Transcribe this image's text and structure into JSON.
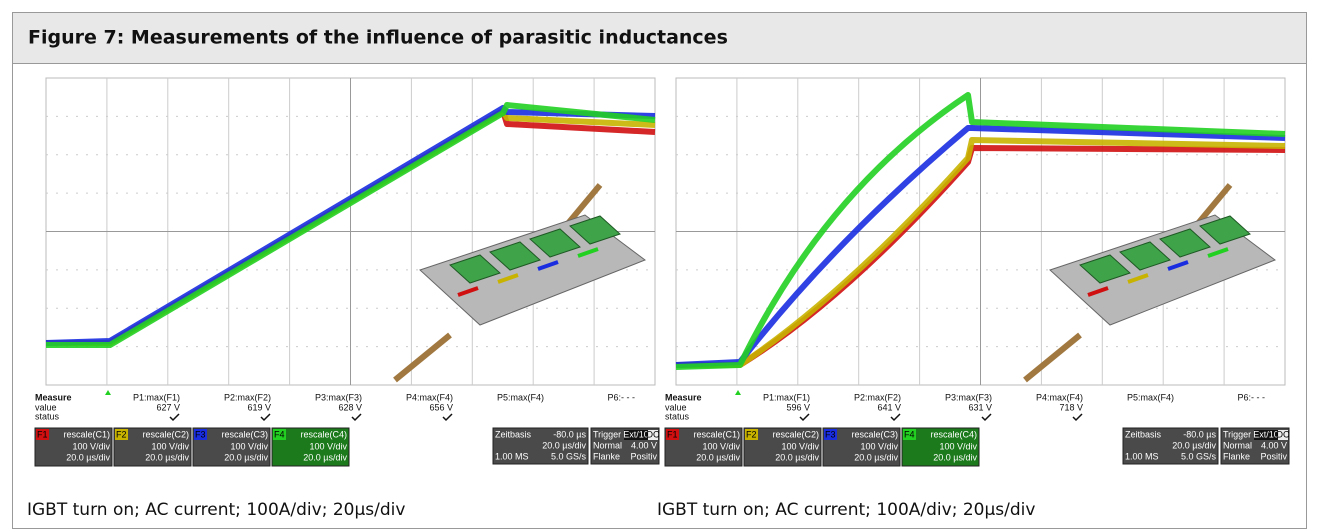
{
  "header": {
    "title": "Figure 7: Measurements of the influence of parasitic inductances"
  },
  "panels": [
    {
      "measure": {
        "label": "Measure",
        "rows": [
          "value",
          "status"
        ],
        "params": [
          "P1:max(F1)",
          "P2:max(F2)",
          "P3:max(F3)",
          "P4:max(F4)",
          "P5:max(F4)",
          "P6:- - -"
        ],
        "values": [
          "627 V",
          "619 V",
          "628 V",
          "656 V"
        ]
      },
      "channels": [
        {
          "name": "F1",
          "title": "rescale(C1)",
          "scale": "100 V/div",
          "time": "20.0 µs/div"
        },
        {
          "name": "F2",
          "title": "rescale(C2)",
          "scale": "100 V/div",
          "time": "20.0 µs/div"
        },
        {
          "name": "F3",
          "title": "rescale(C3)",
          "scale": "100 V/div",
          "time": "20.0 µs/div"
        },
        {
          "name": "F4",
          "title": "rescale(C4)",
          "scale": "100 V/div",
          "time": "20.0 µs/div"
        }
      ],
      "timebase": {
        "label": "Zeitbasis",
        "delay": "-80.0 µs",
        "per_div": "20.0 µs/div",
        "memory": "1.00 MS",
        "rate": "5.0 GS/s"
      },
      "trigger": {
        "label": "Trigger",
        "source": "Ext/10",
        "coupling": "DC",
        "mode": "Normal",
        "level": "4.00 V",
        "type": "Flanke",
        "slope": "Positiv"
      },
      "caption": "IGBT turn on; AC current; 100A/div; 20µs/div"
    },
    {
      "measure": {
        "label": "Measure",
        "rows": [
          "value",
          "status"
        ],
        "params": [
          "P1:max(F1)",
          "P2:max(F2)",
          "P3:max(F3)",
          "P4:max(F4)",
          "P5:max(F4)",
          "P6:- - -"
        ],
        "values": [
          "596 V",
          "641 V",
          "631 V",
          "718 V"
        ]
      },
      "channels": [
        {
          "name": "F1",
          "title": "rescale(C1)",
          "scale": "100 V/div",
          "time": "20.0 µs/div"
        },
        {
          "name": "F2",
          "title": "rescale(C2)",
          "scale": "100 V/div",
          "time": "20.0 µs/div"
        },
        {
          "name": "F3",
          "title": "rescale(C3)",
          "scale": "100 V/div",
          "time": "20.0 µs/div"
        },
        {
          "name": "F4",
          "title": "rescale(C4)",
          "scale": "100 V/div",
          "time": "20.0 µs/div"
        }
      ],
      "timebase": {
        "label": "Zeitbasis",
        "delay": "-80.0 µs",
        "per_div": "20.0 µs/div",
        "memory": "1.00 MS",
        "rate": "5.0 GS/s"
      },
      "trigger": {
        "label": "Trigger",
        "source": "Ext/10",
        "coupling": "DC",
        "mode": "Normal",
        "level": "4.00 V",
        "type": "Flanke",
        "slope": "Positiv"
      },
      "caption": "IGBT turn on; AC current; 100A/div; 20µs/div"
    }
  ]
}
